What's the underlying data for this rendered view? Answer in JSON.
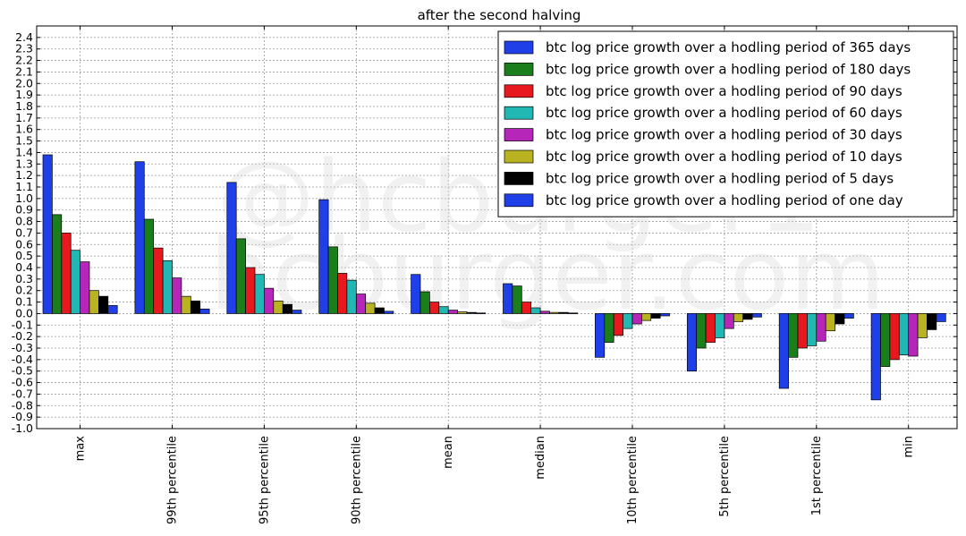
{
  "chart_data": {
    "type": "bar",
    "title": "after the second halving",
    "xlabel": "",
    "ylabel": "",
    "ylim": [
      -1.0,
      2.5
    ],
    "yticks": [
      "-1.0",
      "-0.9",
      "-0.8",
      "-0.7",
      "-0.6",
      "-0.5",
      "-0.4",
      "-0.3",
      "-0.2",
      "-0.1",
      "0.0",
      "0.1",
      "0.2",
      "0.3",
      "0.4",
      "0.5",
      "0.6",
      "0.7",
      "0.8",
      "0.9",
      "1.0",
      "1.1",
      "1.2",
      "1.3",
      "1.4",
      "1.5",
      "1.6",
      "1.7",
      "1.8",
      "1.9",
      "2.0",
      "2.1",
      "2.2",
      "2.3",
      "2.4"
    ],
    "grid": true,
    "legend_position": "top-right",
    "categories": [
      "max",
      "99th percentile",
      "95th percentile",
      "90th percentile",
      "mean",
      "median",
      "10th percentile",
      "5th percentile",
      "1st percentile",
      "min"
    ],
    "series": [
      {
        "name": "btc log price growth over a hodling period of 365 days",
        "color": "#1f3fe8",
        "values": [
          1.38,
          1.32,
          1.14,
          0.99,
          0.34,
          0.26,
          -0.38,
          -0.5,
          -0.65,
          -0.75
        ]
      },
      {
        "name": "btc log price growth over a hodling period of 180 days",
        "color": "#1a7f1a",
        "values": [
          0.86,
          0.82,
          0.65,
          0.58,
          0.19,
          0.24,
          -0.25,
          -0.3,
          -0.38,
          -0.46
        ]
      },
      {
        "name": "btc log price growth over a hodling period of 90 days",
        "color": "#e8191e",
        "values": [
          0.7,
          0.57,
          0.4,
          0.35,
          0.1,
          0.1,
          -0.19,
          -0.25,
          -0.3,
          -0.4
        ]
      },
      {
        "name": "btc log price growth over a hodling period of 60 days",
        "color": "#21b8b4",
        "values": [
          0.55,
          0.46,
          0.34,
          0.29,
          0.06,
          0.05,
          -0.13,
          -0.21,
          -0.28,
          -0.36
        ]
      },
      {
        "name": "btc log price growth over a hodling period of 30 days",
        "color": "#b526b9",
        "values": [
          0.45,
          0.31,
          0.22,
          0.17,
          0.03,
          0.02,
          -0.09,
          -0.13,
          -0.24,
          -0.37
        ]
      },
      {
        "name": "btc log price growth over a hodling period of 10 days",
        "color": "#b9b321",
        "values": [
          0.2,
          0.15,
          0.11,
          0.09,
          0.015,
          0.01,
          -0.06,
          -0.07,
          -0.15,
          -0.21
        ]
      },
      {
        "name": "btc log price growth over a hodling period of 5 days",
        "color": "#000000",
        "values": [
          0.15,
          0.11,
          0.08,
          0.05,
          0.01,
          0.01,
          -0.04,
          -0.05,
          -0.09,
          -0.14
        ]
      },
      {
        "name": "btc log price growth over a hodling period of one day",
        "color": "#1f3fe8",
        "values": [
          0.07,
          0.04,
          0.03,
          0.02,
          0.005,
          0.005,
          -0.02,
          -0.03,
          -0.04,
          -0.07
        ]
      }
    ]
  },
  "watermark": {
    "line1": "@hcburger1",
    "line2": "hcburger.com"
  }
}
